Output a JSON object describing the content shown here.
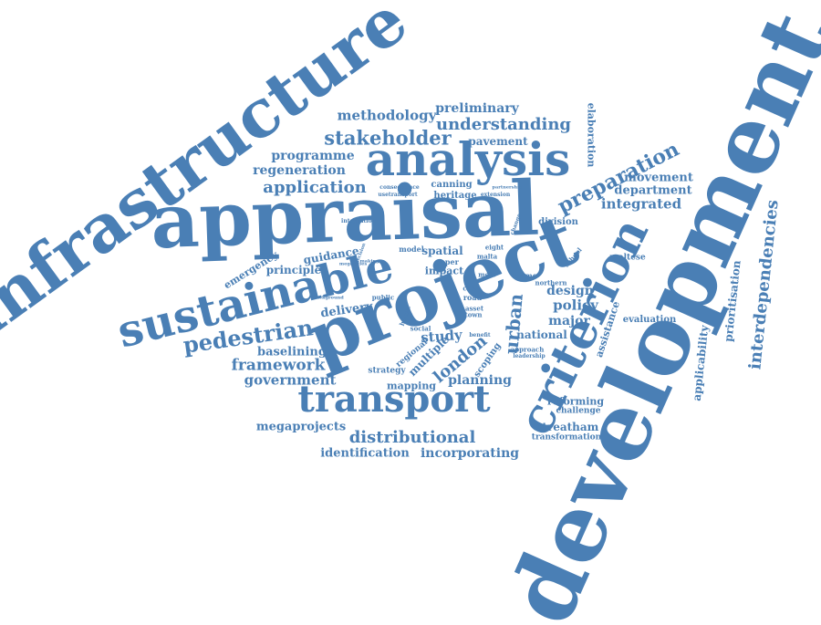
{
  "accent_color": "#4a7fb5",
  "words": {
    "development": "development",
    "infrastructure": "infrastructure",
    "appraisal": "appraisal",
    "project": "project",
    "analysis": "analysis",
    "sustainable": "sustainable",
    "criterion": "criterion",
    "transport": "transport",
    "interdependencies": "interdependencies",
    "pedestrian": "pedestrian",
    "stakeholder": "stakeholder",
    "preparation": "preparation",
    "methodology": "methodology",
    "understanding": "understanding",
    "application": "application",
    "preliminary": "preliminary",
    "programme": "programme",
    "regeneration": "regeneration",
    "pavement": "pavement",
    "elaboration": "elaboration",
    "movement": "movement",
    "department": "department",
    "integrated": "integrated",
    "framework": "framework",
    "government": "government",
    "baselining": "baselining",
    "distributional": "distributional",
    "megaprojects": "megaprojects",
    "identification": "identification",
    "incorporating": "incorporating",
    "emergency": "emergency",
    "principle": "principle",
    "guidance": "guidance",
    "delivery": "delivery",
    "spatial": "spatial",
    "impact": "impact",
    "urban": "urban",
    "study": "study",
    "london": "london",
    "planning": "planning",
    "mapping": "mapping",
    "strategy": "strategy",
    "multiple": "multiple",
    "regional": "regional",
    "scoping": "scoping",
    "design": "design",
    "policy": "policy",
    "major": "major",
    "national": "national",
    "assistance": "assistance",
    "evaluation": "evaluation",
    "applicability": "applicability",
    "prioritisation": "prioritisation",
    "reforming": "reforming",
    "challenge": "challenge",
    "streatham": "streatham",
    "transformation": "transformation",
    "maltese": "maltese",
    "division": "division",
    "canning": "canning",
    "heritage": "heritage",
    "paper": "paper",
    "crime": "crime",
    "school": "school",
    "northern": "northern",
    "model": "model",
    "case": "case",
    "town": "town",
    "asset": "asset",
    "road": "road",
    "public": "public",
    "social": "social",
    "house": "house",
    "benefit": "benefit",
    "approach": "approach",
    "leadership": "leadership",
    "consequence": "consequence",
    "usetransport": "usetransport",
    "extension": "extension",
    "partnership": "partnership",
    "integration": "integration",
    "megacities": "megacities",
    "making": "making",
    "decision": "decision",
    "eight": "eight",
    "malta": "malta",
    "mete": "mete",
    "change": "change",
    "background": "background"
  }
}
